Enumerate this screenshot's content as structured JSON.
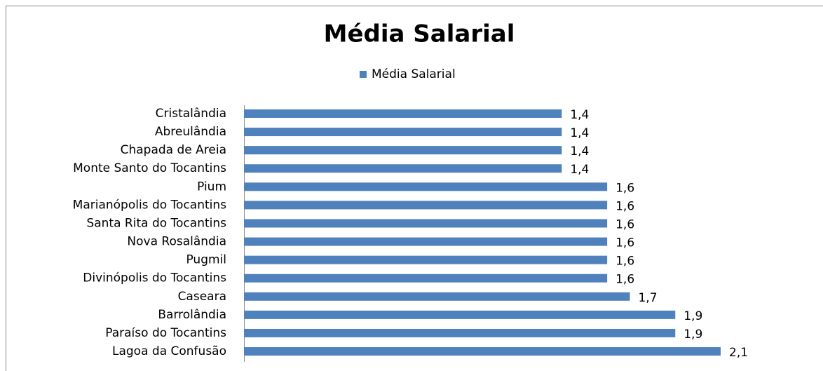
{
  "chart_data": {
    "type": "bar",
    "orientation": "horizontal",
    "title": "Média Salarial",
    "categories": [
      "Cristalândia",
      "Abreulândia",
      "Chapada de Areia",
      "Monte Santo do Tocantins",
      "Pium",
      "Marianópolis do Tocantins",
      "Santa Rita do Tocantins",
      "Nova Rosalândia",
      "Pugmil",
      "Divinópolis do Tocantins",
      "Caseara",
      "Barrolândia",
      "Paraíso do Tocantins",
      "Lagoa da Confusão"
    ],
    "series": [
      {
        "name": "Média Salarial",
        "color": "#4f81bd",
        "values": [
          1.4,
          1.4,
          1.4,
          1.4,
          1.6,
          1.6,
          1.6,
          1.6,
          1.6,
          1.6,
          1.7,
          1.9,
          1.9,
          2.1
        ],
        "value_labels": [
          "1,4",
          "1,4",
          "1,4",
          "1,4",
          "1,6",
          "1,6",
          "1,6",
          "1,6",
          "1,6",
          "1,6",
          "1,7",
          "1,9",
          "1,9",
          "2,1"
        ]
      }
    ],
    "legend": "top"
  }
}
